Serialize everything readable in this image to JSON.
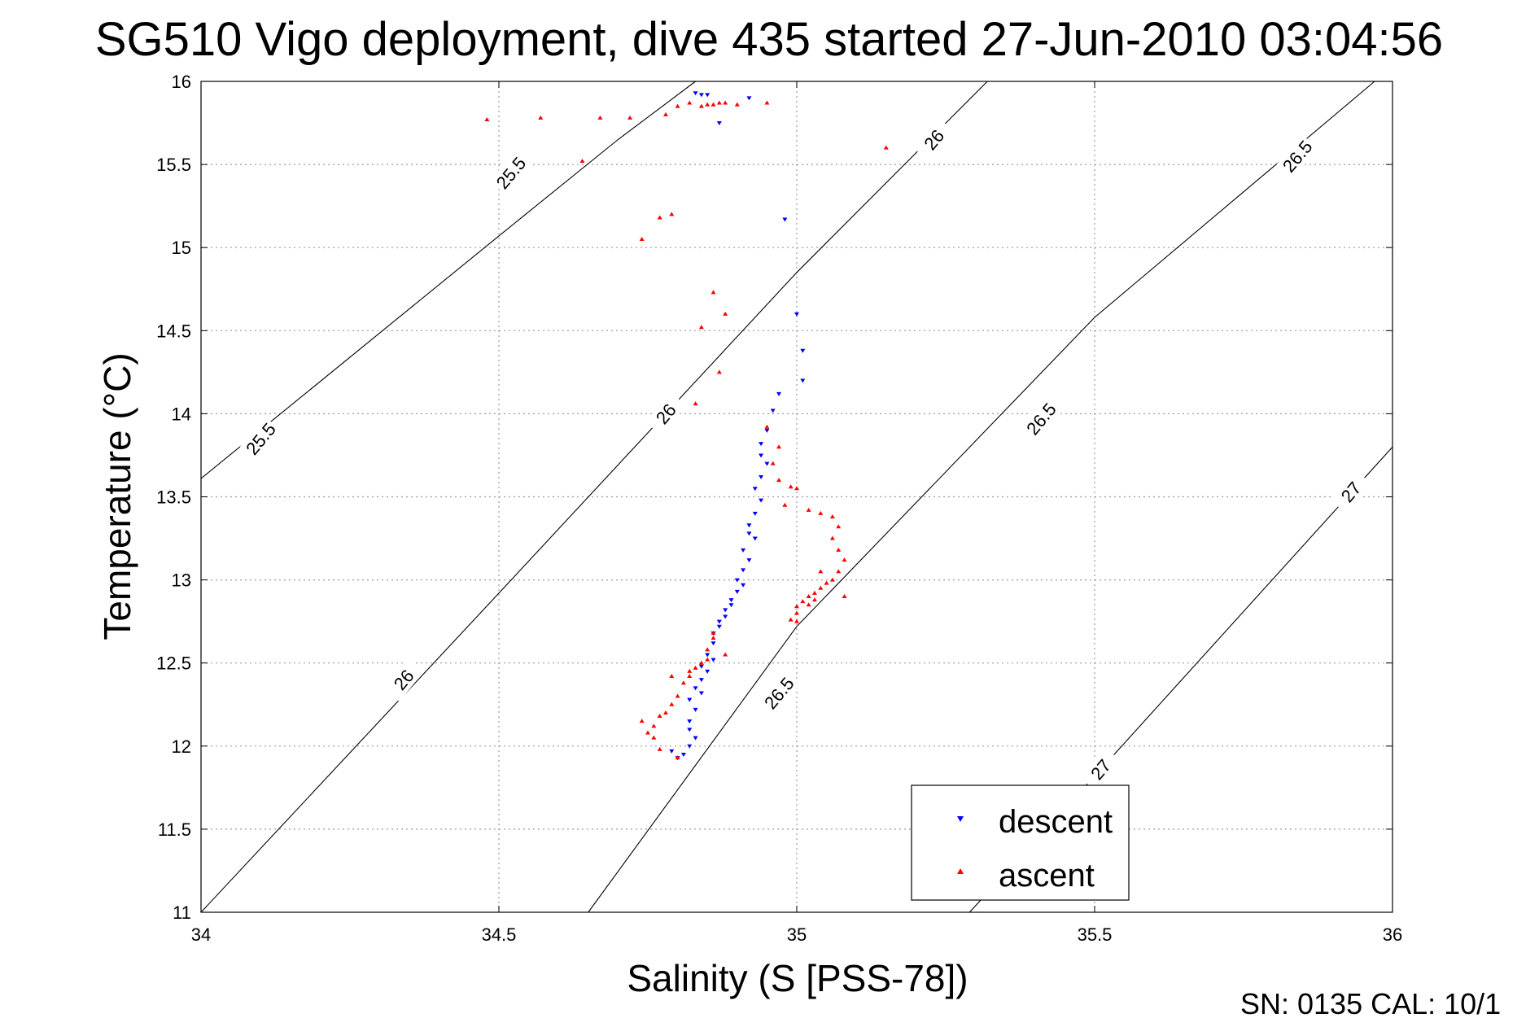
{
  "chart_data": {
    "type": "scatter",
    "title": "SG510 Vigo deployment, dive 435 started 27-Jun-2010 03:04:56",
    "xlabel": "Salinity (S [PSS-78])",
    "ylabel": "Temperature (°C)",
    "xlim": [
      34,
      36
    ],
    "ylim": [
      11,
      16
    ],
    "x_ticks": [
      "34",
      "34.5",
      "35",
      "35.5",
      "36"
    ],
    "y_ticks": [
      "11",
      "11.5",
      "12",
      "12.5",
      "13",
      "13.5",
      "14",
      "14.5",
      "15",
      "15.5",
      "16"
    ],
    "grid": true,
    "legend_position": "bottom-right",
    "footnote": "SN: 0135  CAL: 10/1",
    "density_contours": [
      {
        "label": "25.5",
        "points": [
          [
            34.0,
            13.61
          ],
          [
            34.5,
            15.07
          ],
          [
            34.7,
            15.65
          ],
          [
            34.83,
            16.0
          ]
        ]
      },
      {
        "label": "26",
        "points": [
          [
            34.0,
            11.0
          ],
          [
            34.5,
            12.92
          ],
          [
            35.0,
            14.85
          ],
          [
            35.32,
            16.0
          ]
        ]
      },
      {
        "label": "26.5",
        "points": [
          [
            34.65,
            11.0
          ],
          [
            35.0,
            12.72
          ],
          [
            35.5,
            14.58
          ],
          [
            35.97,
            16.0
          ]
        ]
      },
      {
        "label": "27",
        "points": [
          [
            35.29,
            11.0
          ],
          [
            35.5,
            11.82
          ],
          [
            36.0,
            13.8
          ]
        ]
      }
    ],
    "contour_labels": [
      {
        "text": "25.5",
        "s": 34.1,
        "t": 13.85
      },
      {
        "text": "25.5",
        "s": 34.52,
        "t": 15.45
      },
      {
        "text": "26",
        "s": 34.34,
        "t": 12.4
      },
      {
        "text": "26",
        "s": 34.78,
        "t": 14.0
      },
      {
        "text": "26",
        "s": 35.23,
        "t": 15.65
      },
      {
        "text": "26.5",
        "s": 34.97,
        "t": 12.32
      },
      {
        "text": "26.5",
        "s": 35.41,
        "t": 13.97
      },
      {
        "text": "26.5",
        "s": 35.84,
        "t": 15.55
      },
      {
        "text": "27",
        "s": 35.51,
        "t": 11.86
      },
      {
        "text": "27",
        "s": 35.93,
        "t": 13.53
      }
    ],
    "series": [
      {
        "name": "descent",
        "color": "#0000ff",
        "marker": "triangle-down",
        "points": [
          [
            34.83,
            15.93
          ],
          [
            34.84,
            15.92
          ],
          [
            34.85,
            15.92
          ],
          [
            34.87,
            15.75
          ],
          [
            34.92,
            15.9
          ],
          [
            34.98,
            15.17
          ],
          [
            35.0,
            14.6
          ],
          [
            35.01,
            14.38
          ],
          [
            35.01,
            14.2
          ],
          [
            34.97,
            14.12
          ],
          [
            34.96,
            14.02
          ],
          [
            34.95,
            13.9
          ],
          [
            34.94,
            13.82
          ],
          [
            34.94,
            13.75
          ],
          [
            34.95,
            13.7
          ],
          [
            34.94,
            13.62
          ],
          [
            34.93,
            13.55
          ],
          [
            34.94,
            13.48
          ],
          [
            34.93,
            13.4
          ],
          [
            34.92,
            13.33
          ],
          [
            34.92,
            13.28
          ],
          [
            34.93,
            13.25
          ],
          [
            34.91,
            13.18
          ],
          [
            34.92,
            13.12
          ],
          [
            34.91,
            13.06
          ],
          [
            34.9,
            13.0
          ],
          [
            34.91,
            12.97
          ],
          [
            34.9,
            12.93
          ],
          [
            34.89,
            12.88
          ],
          [
            34.89,
            12.85
          ],
          [
            34.88,
            12.82
          ],
          [
            34.88,
            12.78
          ],
          [
            34.87,
            12.75
          ],
          [
            34.87,
            12.72
          ],
          [
            34.86,
            12.68
          ],
          [
            34.86,
            12.62
          ],
          [
            34.85,
            12.55
          ],
          [
            34.86,
            12.52
          ],
          [
            34.84,
            12.48
          ],
          [
            34.85,
            12.45
          ],
          [
            34.84,
            12.4
          ],
          [
            34.83,
            12.35
          ],
          [
            34.84,
            12.32
          ],
          [
            34.82,
            12.28
          ],
          [
            34.83,
            12.22
          ],
          [
            34.82,
            12.15
          ],
          [
            34.82,
            12.1
          ],
          [
            34.83,
            12.05
          ],
          [
            34.82,
            12.0
          ],
          [
            34.81,
            11.95
          ],
          [
            34.8,
            11.93
          ],
          [
            34.79,
            11.97
          ]
        ]
      },
      {
        "name": "ascent",
        "color": "#ff0000",
        "marker": "triangle-up",
        "points": [
          [
            34.48,
            15.77
          ],
          [
            34.57,
            15.78
          ],
          [
            34.67,
            15.78
          ],
          [
            34.72,
            15.78
          ],
          [
            34.78,
            15.8
          ],
          [
            34.8,
            15.85
          ],
          [
            34.82,
            15.87
          ],
          [
            34.84,
            15.85
          ],
          [
            34.85,
            15.86
          ],
          [
            34.86,
            15.86
          ],
          [
            34.87,
            15.87
          ],
          [
            34.88,
            15.87
          ],
          [
            34.9,
            15.86
          ],
          [
            34.95,
            15.87
          ],
          [
            34.64,
            15.52
          ],
          [
            35.15,
            15.6
          ],
          [
            34.77,
            15.18
          ],
          [
            34.79,
            15.2
          ],
          [
            34.74,
            15.05
          ],
          [
            34.86,
            14.73
          ],
          [
            34.88,
            14.6
          ],
          [
            34.84,
            14.52
          ],
          [
            34.87,
            14.25
          ],
          [
            34.83,
            14.06
          ],
          [
            34.95,
            13.92
          ],
          [
            34.97,
            13.8
          ],
          [
            34.96,
            13.7
          ],
          [
            34.97,
            13.6
          ],
          [
            34.99,
            13.56
          ],
          [
            35.0,
            13.55
          ],
          [
            34.98,
            13.45
          ],
          [
            35.02,
            13.42
          ],
          [
            35.04,
            13.4
          ],
          [
            35.06,
            13.38
          ],
          [
            35.07,
            13.32
          ],
          [
            35.06,
            13.25
          ],
          [
            35.07,
            13.18
          ],
          [
            35.08,
            13.12
          ],
          [
            35.07,
            13.05
          ],
          [
            35.06,
            13.0
          ],
          [
            35.05,
            12.98
          ],
          [
            35.04,
            12.95
          ],
          [
            35.03,
            12.92
          ],
          [
            35.02,
            12.9
          ],
          [
            35.01,
            12.87
          ],
          [
            35.0,
            12.84
          ],
          [
            35.0,
            12.8
          ],
          [
            34.99,
            12.76
          ],
          [
            35.02,
            12.85
          ],
          [
            35.03,
            12.88
          ],
          [
            35.08,
            12.9
          ],
          [
            35.04,
            13.05
          ],
          [
            35.0,
            12.75
          ],
          [
            34.88,
            12.55
          ],
          [
            34.86,
            12.65
          ],
          [
            34.85,
            12.58
          ],
          [
            34.84,
            12.5
          ],
          [
            34.83,
            12.47
          ],
          [
            34.82,
            12.42
          ],
          [
            34.81,
            12.38
          ],
          [
            34.8,
            12.3
          ],
          [
            34.79,
            12.25
          ],
          [
            34.78,
            12.2
          ],
          [
            34.77,
            12.18
          ],
          [
            34.76,
            12.12
          ],
          [
            34.75,
            12.08
          ],
          [
            34.74,
            12.15
          ],
          [
            34.76,
            12.05
          ],
          [
            34.77,
            11.98
          ],
          [
            34.8,
            11.93
          ],
          [
            34.85,
            12.52
          ],
          [
            34.82,
            12.45
          ],
          [
            34.79,
            12.42
          ],
          [
            34.86,
            12.68
          ]
        ]
      }
    ]
  }
}
